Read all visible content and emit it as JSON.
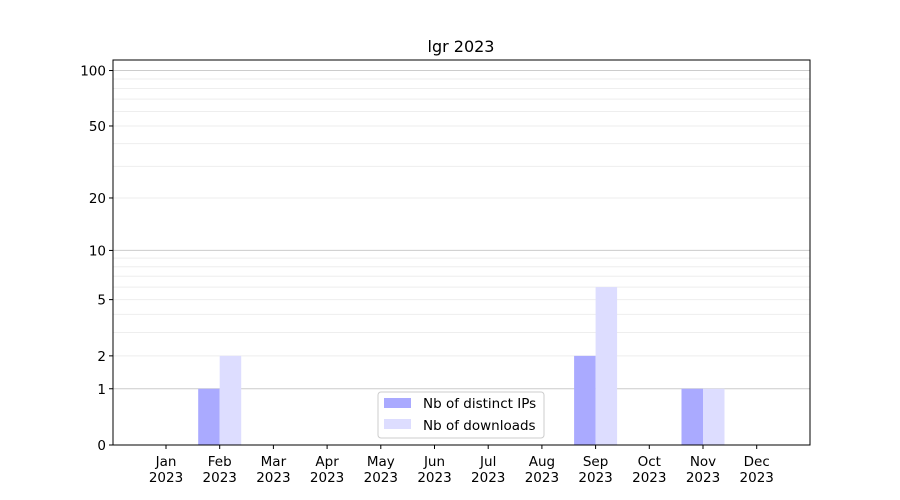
{
  "chart_data": {
    "type": "bar",
    "title": "lgr 2023",
    "xlabel": "",
    "ylabel": "",
    "yscale": "log(1+y)",
    "ylim": [
      0,
      114
    ],
    "yticks": [
      0,
      1,
      2,
      5,
      10,
      20,
      50,
      100
    ],
    "ytick_labels": [
      "0",
      "1",
      "2",
      "5",
      "10",
      "20",
      "50",
      "100"
    ],
    "grid": true,
    "legend_position": "bottom-center",
    "categories": [
      "Jan\n2023",
      "Feb\n2023",
      "Mar\n2023",
      "Apr\n2023",
      "May\n2023",
      "Jun\n2023",
      "Jul\n2023",
      "Aug\n2023",
      "Sep\n2023",
      "Oct\n2023",
      "Nov\n2023",
      "Dec\n2023"
    ],
    "series": [
      {
        "name": "Nb of distinct IPs",
        "color": "#aaaaff",
        "values": [
          0,
          1,
          0,
          0,
          0,
          0,
          0,
          0,
          2,
          0,
          1,
          0
        ]
      },
      {
        "name": "Nb of downloads",
        "color": "#ddddff",
        "values": [
          0,
          2,
          0,
          0,
          0,
          0,
          0,
          0,
          6,
          0,
          1,
          0
        ]
      }
    ]
  }
}
